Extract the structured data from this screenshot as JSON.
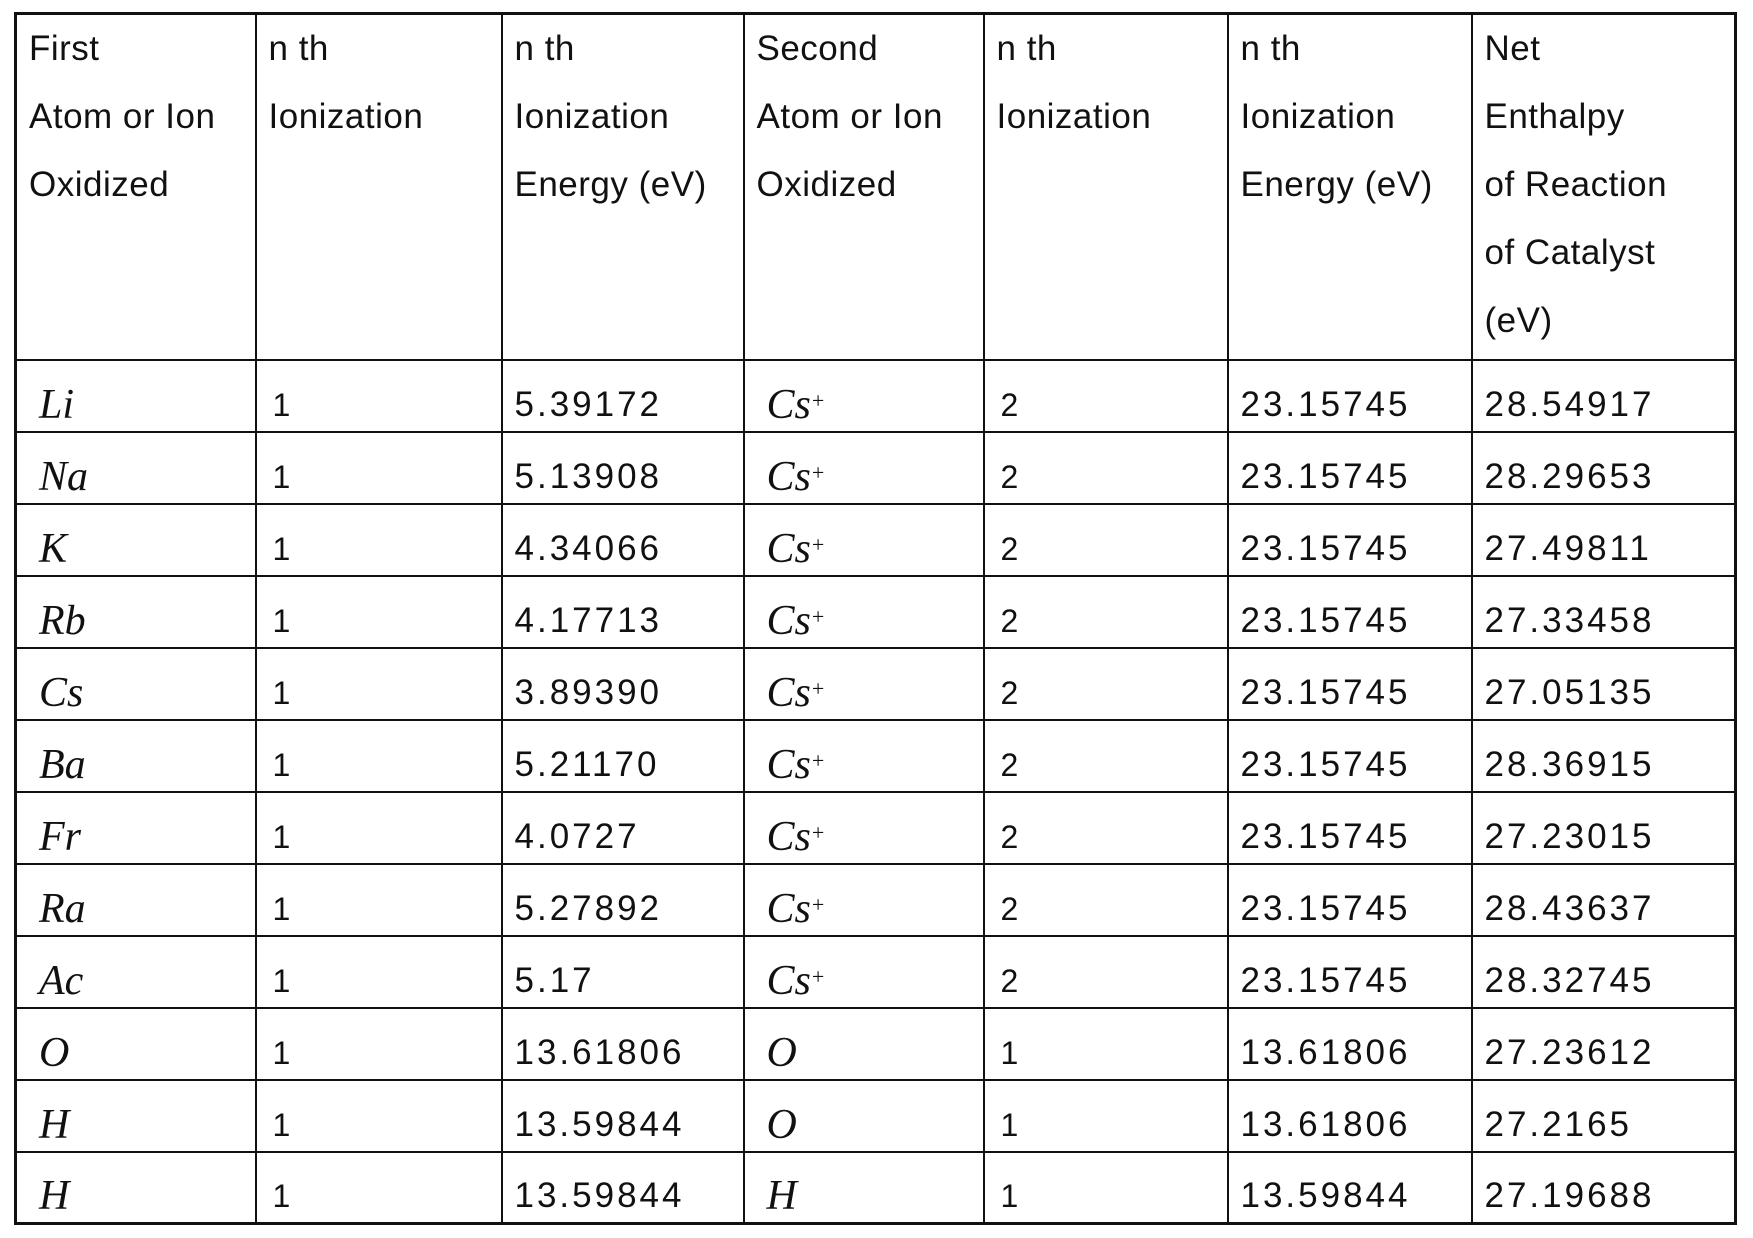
{
  "table": {
    "columns": [
      {
        "header_lines": [
          "First",
          "Atom or Ion",
          "Oxidized"
        ]
      },
      {
        "header_lines": [
          "n th",
          "Ionization"
        ]
      },
      {
        "header_lines": [
          "n th",
          "Ionization",
          "Energy (eV)"
        ]
      },
      {
        "header_lines": [
          "Second",
          "Atom or Ion",
          "Oxidized"
        ]
      },
      {
        "header_lines": [
          "n th",
          "Ionization"
        ]
      },
      {
        "header_lines": [
          "n th",
          "Ionization",
          "Energy (eV)"
        ]
      },
      {
        "header_lines": [
          "Net",
          "Enthalpy",
          "of Reaction",
          "of Catalyst",
          "(eV)"
        ]
      }
    ],
    "rows": [
      {
        "first": "Li",
        "n1": "1",
        "e1": "5.39172",
        "second": "Cs",
        "second_sup": "+",
        "n2": "2",
        "e2": "23.15745",
        "net": "28.54917"
      },
      {
        "first": "Na",
        "n1": "1",
        "e1": "5.13908",
        "second": "Cs",
        "second_sup": "+",
        "n2": "2",
        "e2": "23.15745",
        "net": "28.29653"
      },
      {
        "first": "K",
        "n1": "1",
        "e1": "4.34066",
        "second": "Cs",
        "second_sup": "+",
        "n2": "2",
        "e2": "23.15745",
        "net": "27.49811"
      },
      {
        "first": "Rb",
        "n1": "1",
        "e1": "4.17713",
        "second": "Cs",
        "second_sup": "+",
        "n2": "2",
        "e2": "23.15745",
        "net": "27.33458"
      },
      {
        "first": "Cs",
        "n1": "1",
        "e1": "3.89390",
        "second": "Cs",
        "second_sup": "+",
        "n2": "2",
        "e2": "23.15745",
        "net": "27.05135"
      },
      {
        "first": "Ba",
        "n1": "1",
        "e1": "5.21170",
        "second": "Cs",
        "second_sup": "+",
        "n2": "2",
        "e2": "23.15745",
        "net": "28.36915"
      },
      {
        "first": "Fr",
        "n1": "1",
        "e1": "4.0727",
        "second": "Cs",
        "second_sup": "+",
        "n2": "2",
        "e2": "23.15745",
        "net": "27.23015"
      },
      {
        "first": "Ra",
        "n1": "1",
        "e1": "5.27892",
        "second": "Cs",
        "second_sup": "+",
        "n2": "2",
        "e2": "23.15745",
        "net": "28.43637"
      },
      {
        "first": "Ac",
        "n1": "1",
        "e1": "5.17",
        "second": "Cs",
        "second_sup": "+",
        "n2": "2",
        "e2": "23.15745",
        "net": "28.32745"
      },
      {
        "first": "O",
        "n1": "1",
        "e1": "13.61806",
        "second": "O",
        "second_sup": "",
        "n2": "1",
        "e2": "13.61806",
        "net": "27.23612"
      },
      {
        "first": "H",
        "n1": "1",
        "e1": "13.59844",
        "second": "O",
        "second_sup": "",
        "n2": "1",
        "e2": "13.61806",
        "net": "27.2165"
      },
      {
        "first": "H",
        "n1": "1",
        "e1": "13.59844",
        "second": "H",
        "second_sup": "",
        "n2": "1",
        "e2": "13.59844",
        "net": "27.19688"
      }
    ]
  }
}
